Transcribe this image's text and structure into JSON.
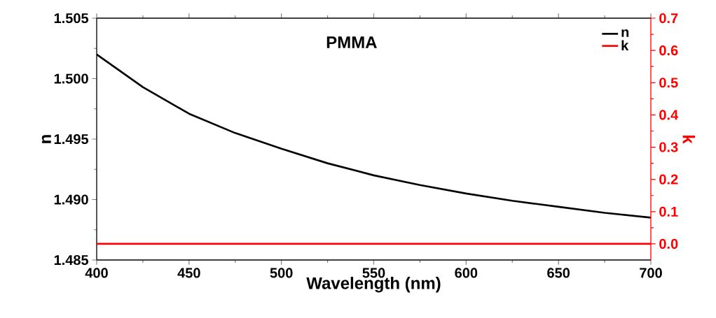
{
  "chart_data": {
    "type": "line",
    "title": "PMMA",
    "xlabel": "Wavelength (nm)",
    "ylabel": "n",
    "y2label": "k",
    "x": [
      400,
      425,
      450,
      475,
      500,
      525,
      550,
      575,
      600,
      625,
      650,
      675,
      700
    ],
    "series": [
      {
        "name": "n",
        "color": "#000000",
        "values": [
          1.502,
          1.4993,
          1.4971,
          1.4955,
          1.4942,
          1.493,
          1.492,
          1.4912,
          1.4905,
          1.4899,
          1.4894,
          1.4889,
          1.4885
        ]
      },
      {
        "name": "k",
        "color": "#ff0000",
        "axis": "y2",
        "values": [
          0,
          0,
          0,
          0,
          0,
          0,
          0,
          0,
          0,
          0,
          0,
          0,
          0
        ]
      }
    ],
    "xlim": [
      400,
      700
    ],
    "xticks": [
      400,
      450,
      500,
      550,
      600,
      650,
      700
    ],
    "ylim": [
      1.485,
      1.505
    ],
    "yticks": [
      {
        "value": 1.485,
        "label": "1.485"
      },
      {
        "value": 1.49,
        "label": "1.490"
      },
      {
        "value": 1.495,
        "label": "1.495"
      },
      {
        "value": 1.5,
        "label": "1.500"
      },
      {
        "value": 1.505,
        "label": "1.505"
      }
    ],
    "y2lim": [
      -0.05,
      0.7
    ],
    "y2ticks": [
      {
        "value": 0,
        "label": "0.0"
      },
      0.1,
      0.2,
      0.3,
      0.4,
      0.5,
      0.6,
      0.7
    ],
    "legend": "top right",
    "grid": false,
    "marker": "none",
    "line_style": "solid"
  }
}
